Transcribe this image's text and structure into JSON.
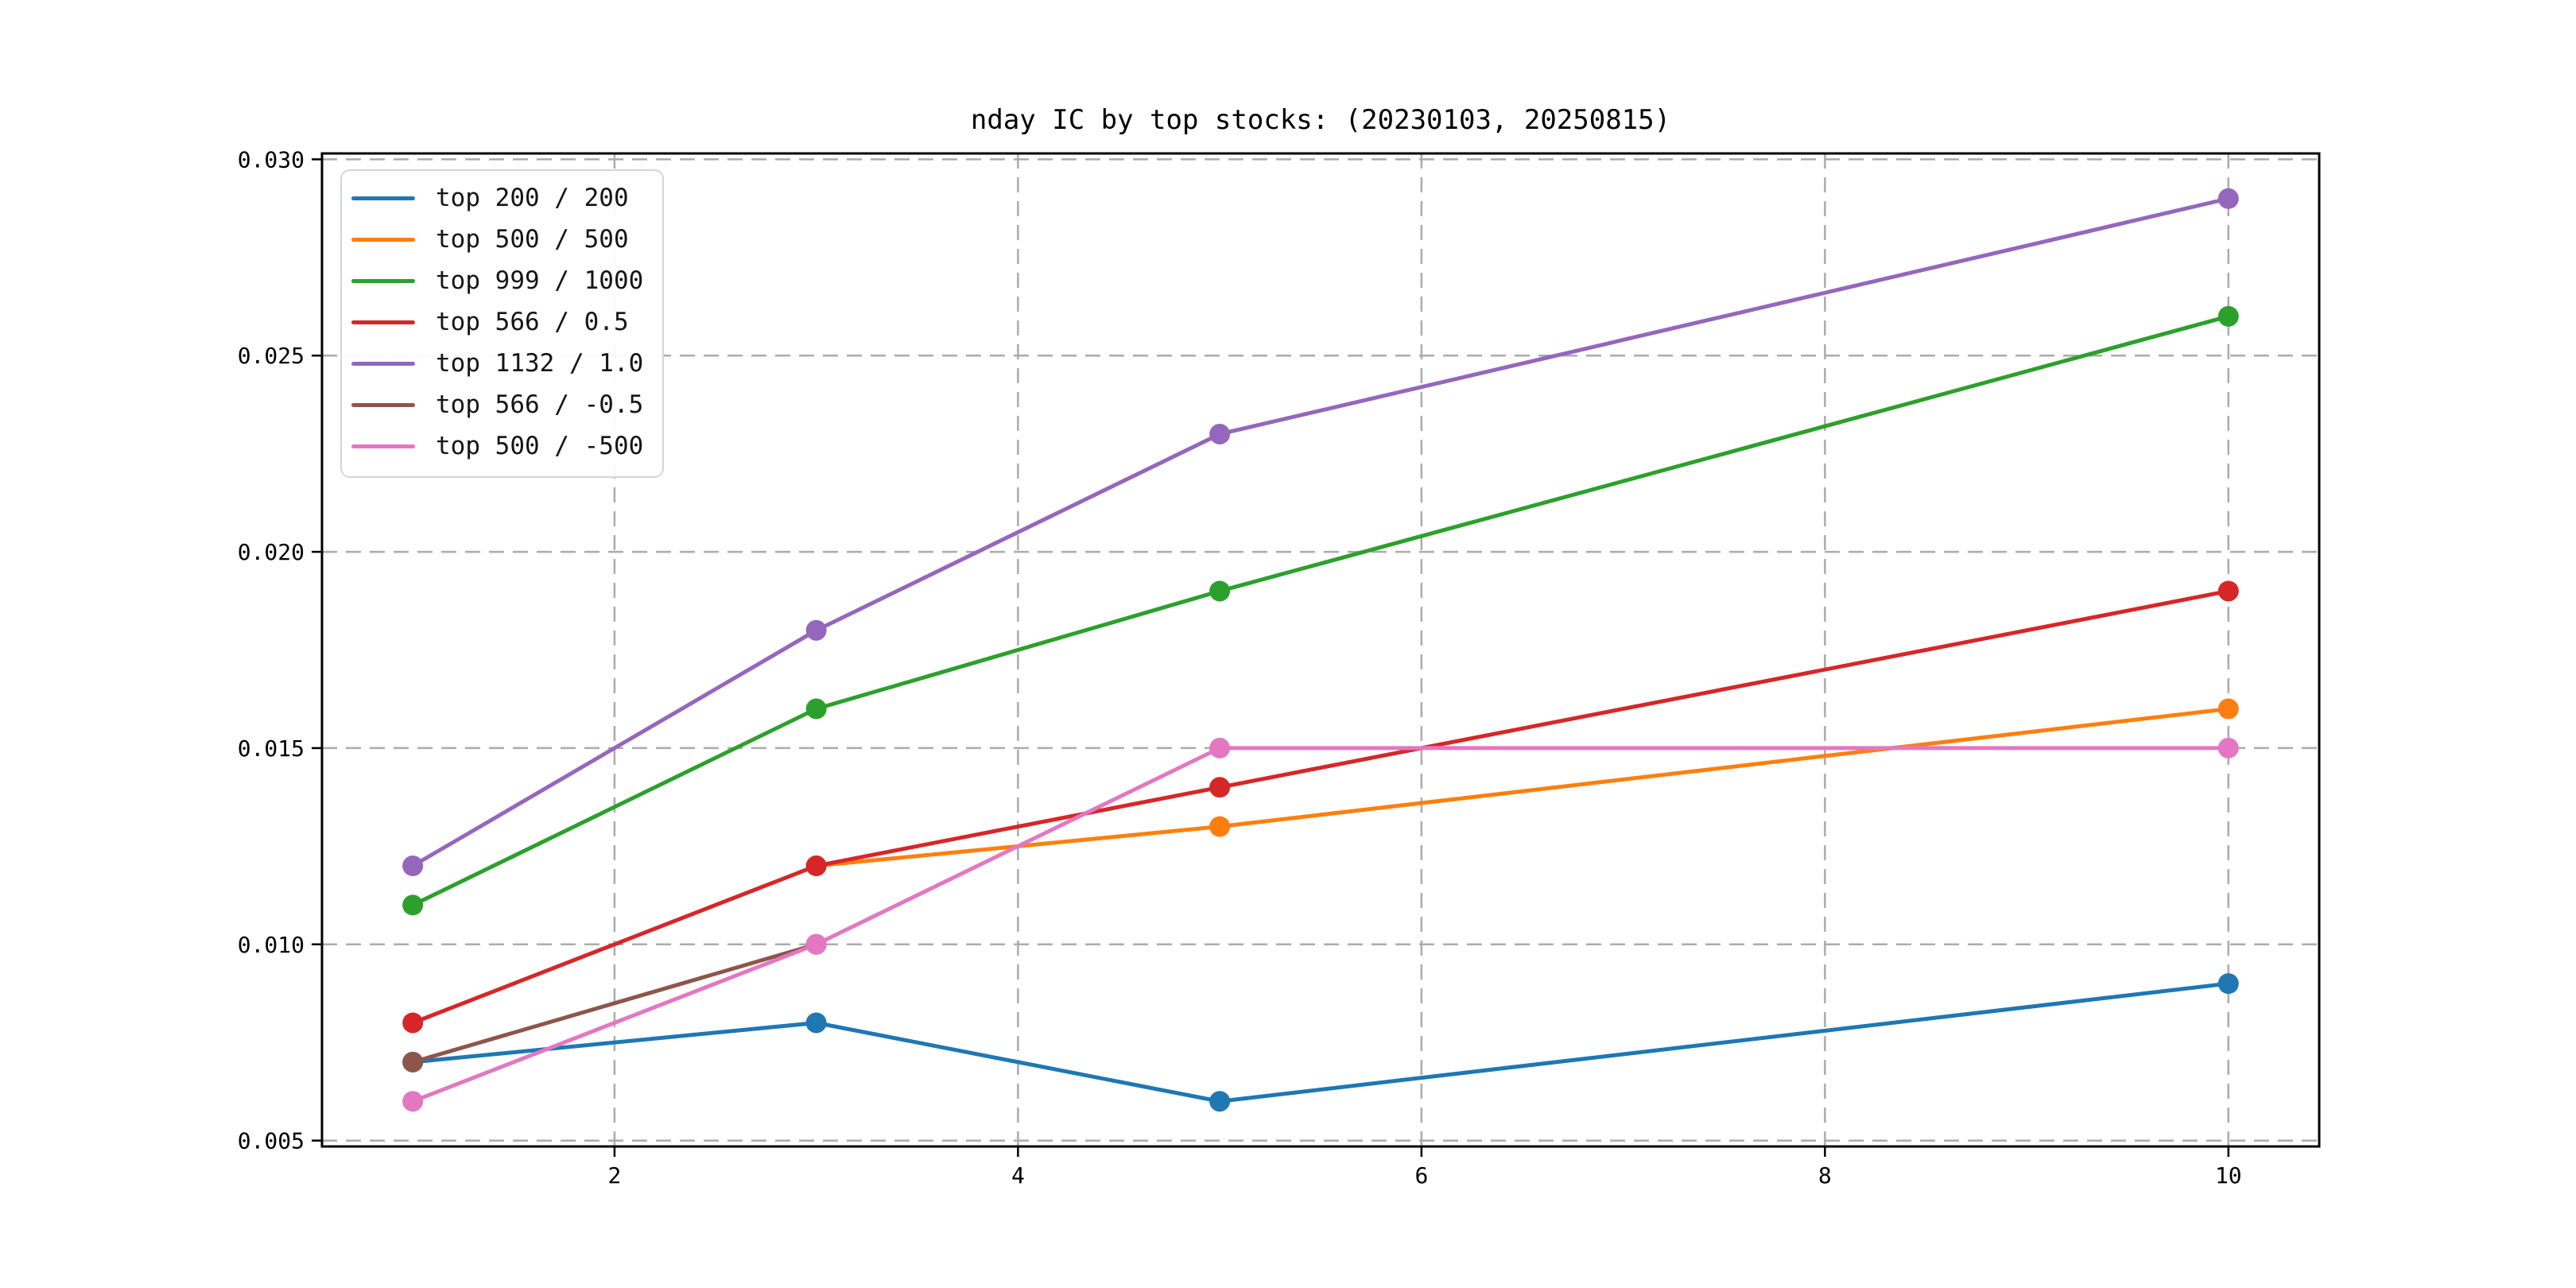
{
  "title": "nday IC by top stocks: (20230103, 20250815)",
  "chart_data": {
    "type": "line",
    "title": "nday IC by top stocks: (20230103, 20250815)",
    "xlabel": "",
    "ylabel": "",
    "xlim": [
      0.55,
      10.45
    ],
    "ylim": [
      0.00485,
      0.03015
    ],
    "grid": true,
    "grid_style": "dashed",
    "grid_color": "#ababab",
    "legend_position": "upper left",
    "x_ticks": [
      2,
      4,
      6,
      8,
      10
    ],
    "x_tick_labels": [
      "2",
      "4",
      "6",
      "8",
      "10"
    ],
    "y_ticks": [
      0.005,
      0.01,
      0.015,
      0.02,
      0.025,
      0.03
    ],
    "y_tick_labels": [
      "0.005",
      "0.010",
      "0.015",
      "0.020",
      "0.025",
      "0.030"
    ],
    "series": [
      {
        "name": "top 200 / 200",
        "color": "#1f77b4",
        "x": [
          1,
          3,
          5,
          10
        ],
        "y": [
          0.007,
          0.008,
          0.006,
          0.009
        ]
      },
      {
        "name": "top 500 / 500",
        "color": "#ff7f0e",
        "x": [
          3,
          5,
          10
        ],
        "y": [
          0.012,
          0.013,
          0.016
        ]
      },
      {
        "name": "top 999 / 1000",
        "color": "#2ca02c",
        "x": [
          1,
          3,
          5,
          10
        ],
        "y": [
          0.011,
          0.016,
          0.019,
          0.026
        ]
      },
      {
        "name": "top 566 / 0.5",
        "color": "#d62728",
        "x": [
          1,
          3,
          5,
          10
        ],
        "y": [
          0.008,
          0.012,
          0.014,
          0.019
        ]
      },
      {
        "name": "top 1132 / 1.0",
        "color": "#9467bd",
        "x": [
          1,
          3,
          5,
          10
        ],
        "y": [
          0.012,
          0.018,
          0.023,
          0.029
        ]
      },
      {
        "name": "top 566 / -0.5",
        "color": "#8c564b",
        "x": [
          1,
          3
        ],
        "y": [
          0.007,
          0.01
        ]
      },
      {
        "name": "top 500 / -500",
        "color": "#e377c2",
        "x": [
          1,
          3,
          5,
          10
        ],
        "y": [
          0.006,
          0.01,
          0.015,
          0.015
        ]
      }
    ]
  }
}
